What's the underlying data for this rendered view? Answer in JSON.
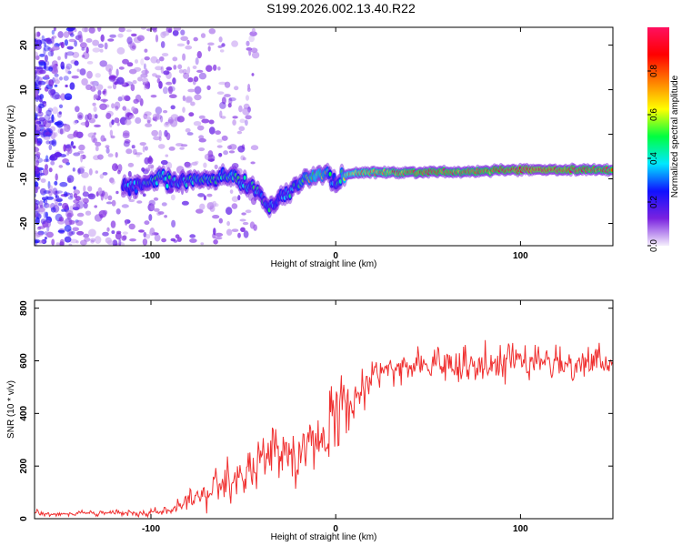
{
  "title": "S199.2026.002.13.40.R22",
  "chart_data": [
    {
      "type": "heatmap",
      "title": "S199.2026.002.13.40.R22",
      "xlabel": "Height of straight line (km)",
      "ylabel": "Frequency (Hz)",
      "xlim": [
        -163,
        150
      ],
      "ylim": [
        -25,
        24
      ],
      "x_ticks": [
        -100,
        0,
        100
      ],
      "y_ticks": [
        20,
        10,
        0,
        -10,
        -20
      ],
      "colorbar": {
        "label": "Normalized spectral amplitude",
        "range": [
          0,
          1
        ],
        "ticks": [
          0.0,
          0.2,
          0.4,
          0.6,
          0.8
        ],
        "colors": [
          "#f4eefc",
          "#7a22e0",
          "#1010ff",
          "#00e8ff",
          "#00ff40",
          "#ffff00",
          "#ff8000",
          "#ff0000",
          "#ff1060"
        ]
      },
      "ridge": {
        "x": [
          -115,
          -105,
          -95,
          -85,
          -75,
          -65,
          -55,
          -50,
          -45,
          -40,
          -35,
          -30,
          -25,
          -20,
          -15,
          -10,
          -5,
          0,
          5,
          15,
          30,
          50,
          70,
          90,
          110,
          130,
          150
        ],
        "freq": [
          -11.5,
          -11,
          -10,
          -11,
          -10,
          -10,
          -9,
          -11,
          -12,
          -14,
          -17,
          -14,
          -13,
          -11,
          -10,
          -9,
          -8.5,
          -11,
          -9,
          -8.5,
          -8.5,
          -8.5,
          -8.5,
          -8,
          -8,
          -8,
          -8
        ],
        "amp": [
          0.25,
          0.35,
          0.45,
          0.35,
          0.45,
          0.4,
          0.45,
          0.35,
          0.35,
          0.3,
          0.4,
          0.3,
          0.35,
          0.45,
          0.5,
          0.6,
          0.5,
          0.3,
          0.6,
          0.7,
          0.75,
          0.85,
          0.8,
          0.85,
          0.9,
          0.85,
          0.8
        ]
      }
    },
    {
      "type": "line",
      "title": "",
      "xlabel": "Height of straight line (km)",
      "ylabel": "SNR (10 * v/v)",
      "xlim": [
        -163,
        150
      ],
      "ylim": [
        0,
        830
      ],
      "x_ticks": [
        -100,
        0,
        100
      ],
      "y_ticks": [
        0,
        200,
        400,
        600,
        800
      ],
      "color": "#f03030",
      "series": [
        {
          "name": "SNR",
          "x": [
            -163,
            -140,
            -120,
            -100,
            -90,
            -80,
            -70,
            -60,
            -50,
            -40,
            -30,
            -20,
            -10,
            0,
            10,
            15,
            20,
            30,
            40,
            50,
            60,
            70,
            80,
            90,
            100,
            110,
            120,
            130,
            140,
            150
          ],
          "mean": [
            20,
            20,
            20,
            25,
            35,
            60,
            110,
            140,
            160,
            200,
            240,
            260,
            310,
            380,
            450,
            500,
            540,
            570,
            580,
            585,
            590,
            590,
            595,
            600,
            600,
            595,
            590,
            595,
            600,
            600
          ],
          "noise": [
            8,
            8,
            8,
            10,
            15,
            30,
            50,
            60,
            70,
            80,
            100,
            110,
            110,
            100,
            90,
            70,
            50,
            45,
            40,
            40,
            45,
            55,
            60,
            70,
            45,
            45,
            45,
            45,
            45,
            45
          ]
        }
      ]
    }
  ]
}
